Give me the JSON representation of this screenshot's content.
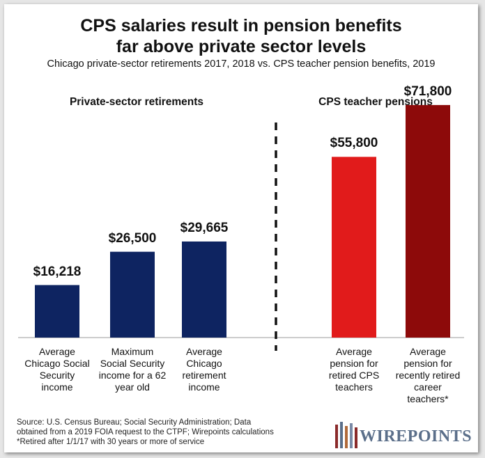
{
  "title_line1": "CPS salaries result in pension benefits",
  "title_line2": "far above private sector levels",
  "subtitle": "Chicago private-sector retirements 2017, 2018 vs. CPS teacher pension benefits, 2019",
  "sections": {
    "private": "Private-sector retirements",
    "cps": "CPS teacher pensions"
  },
  "colors": {
    "navy": "#0e2461",
    "red": "#e11b1b",
    "darkred": "#8d0a0a"
  },
  "chart_data": {
    "type": "bar",
    "categories": [
      "Average Chicago Social Security income",
      "Maximum Social Security income for a 62 year old",
      "Average Chicago retirement income",
      "Average pension for retired CPS teachers",
      "Average pension for recently retired career teachers*"
    ],
    "category_lines": [
      [
        "Average",
        "Chicago Social",
        "Security",
        "income"
      ],
      [
        "Maximum",
        "Social Security",
        "income for a 62",
        "year old"
      ],
      [
        "Average",
        "Chicago",
        "retirement",
        "income"
      ],
      [
        "Average",
        "pension for",
        "retired CPS",
        "teachers"
      ],
      [
        "Average",
        "pension for",
        "recently retired",
        "career",
        "teachers*"
      ]
    ],
    "values": [
      16218,
      26500,
      29665,
      55800,
      71800
    ],
    "value_labels": [
      "$16,218",
      "$26,500",
      "$29,665",
      "$55,800",
      "$71,800"
    ],
    "bar_colors": [
      "#0e2461",
      "#0e2461",
      "#0e2461",
      "#e11b1b",
      "#8d0a0a"
    ],
    "groups": [
      "Private-sector retirements",
      "Private-sector retirements",
      "Private-sector retirements",
      "CPS teacher pensions",
      "CPS teacher pensions"
    ],
    "ylim": [
      0,
      75000
    ],
    "grid": false,
    "legend": "none"
  },
  "source": {
    "line1": "Source: U.S. Census Bureau; Social Security Administration; Data",
    "line2": "obtained from a 2019 FOIA request to the CTPF; Wirepoints calculations",
    "line3": "*Retired after 1/1/17 with 30 years or more of service"
  },
  "logo": {
    "text": "WIREPOINTS"
  }
}
